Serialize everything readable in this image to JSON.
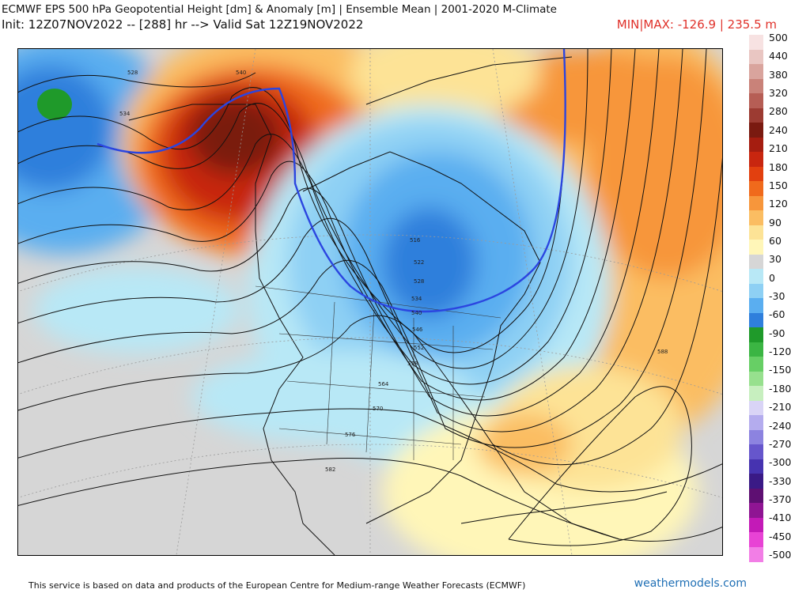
{
  "header": {
    "title": "ECMWF EPS 500 hPa Geopotential Height [dm] & Anomaly [m] | Ensemble Mean | 2001-2020 M-Climate",
    "init": "Init: 12Z07NOV2022 -- [288] hr --> Valid Sat 12Z19NOV2022",
    "minmax": "MIN|MAX: -126.9 | 235.5 m"
  },
  "contour_labels": [
    "528",
    "534",
    "540",
    "516",
    "522",
    "528",
    "534",
    "540",
    "546",
    "552",
    "558",
    "564",
    "570",
    "576",
    "582",
    "588"
  ],
  "colorbar": {
    "labels": [
      "500",
      "440",
      "380",
      "320",
      "280",
      "240",
      "210",
      "180",
      "150",
      "120",
      "90",
      "60",
      "30",
      "0",
      "-30",
      "-60",
      "-90",
      "-120",
      "-150",
      "-180",
      "-210",
      "-240",
      "-270",
      "-300",
      "-330",
      "-370",
      "-410",
      "-450",
      "-500"
    ],
    "colors": [
      "#f7e2e2",
      "#e9c6c2",
      "#d9a49d",
      "#c98279",
      "#b65e55",
      "#9c3b32",
      "#7a1a10",
      "#a51d10",
      "#c8260f",
      "#e2400f",
      "#f06a1c",
      "#f7963b",
      "#fbbd62",
      "#fde396",
      "#fff6b8",
      "#d6d6d6",
      "#b8e8f6",
      "#8ed0f4",
      "#5aaef0",
      "#2f7fdc",
      "#1f9a2a",
      "#3bb543",
      "#67cf65",
      "#97e08e",
      "#c7efbf",
      "#d9d4f6",
      "#b4acee",
      "#8c83e0",
      "#6656cc",
      "#4633b0",
      "#3a1a86",
      "#5e0f72",
      "#8f1593",
      "#c31ab7",
      "#e843d5",
      "#f27ee6"
    ]
  },
  "footer": {
    "disclaimer": "This service is based on data and products of the European Centre for Medium-range Weather Forecasts (ECMWF)",
    "brand": "weathermodels.com"
  }
}
